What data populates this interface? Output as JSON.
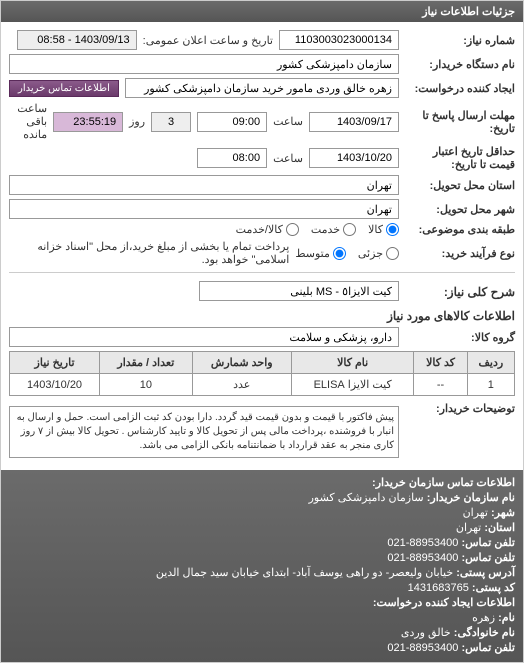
{
  "panel_title": "جزئیات اطلاعات نیاز",
  "form": {
    "need_number_label": "شماره نیاز:",
    "need_number": "1103003023000134",
    "public_notice_label": "تاریخ و ساعت اعلان عمومی:",
    "public_notice": "1403/09/13 - 08:58",
    "buyer_label": "نام دستگاه خریدار:",
    "buyer": "سازمان دامپزشکی کشور",
    "requester_label": "ایجاد کننده درخواست:",
    "requester": "زهره خالق وردی مامور خرید سازمان دامپزشکی کشور",
    "contact_btn": "اطلاعات تماس خریدار",
    "deadline_label": "مهلت ارسال پاسخ تا تاریخ:",
    "deadline_date": "1403/09/17",
    "saat1": "ساعت",
    "deadline_time": "09:00",
    "roz": "روز",
    "days": "3",
    "remain_time": "23:55:19",
    "remain_label": "ساعت باقی مانده",
    "validity_label": "حداقل تاریخ اعتبار قیمت تا تاریخ:",
    "validity_date": "1403/10/20",
    "validity_time": "08:00",
    "province_label": "استان محل تحویل:",
    "province": "تهران",
    "city_label": "شهر محل تحویل:",
    "city": "تهران",
    "topic_label": "طبقه بندی موضوعی:",
    "topic_kala": "کالا",
    "topic_khadamat": "خدمت",
    "topic_kalakhadamat": "کالا/خدمت",
    "process_label": "نوع فرآیند خرید:",
    "process_jozi": "جزئی",
    "process_motavaset": "متوسط",
    "process_note": "پرداخت تمام یا بخشی از مبلغ خرید،از محل \"اسناد خزانه اسلامی\" خواهد بود."
  },
  "key_label": "شرح کلی نیاز:",
  "key_value": "کیت الایزا٥ - MS بلینی",
  "items_title": "اطلاعات کالاهای مورد نیاز",
  "group_label": "گروه کالا:",
  "group_value": "دارو، پزشکی و سلامت",
  "table": {
    "headers": [
      "ردیف",
      "کد کالا",
      "نام کالا",
      "واحد شمارش",
      "تعداد / مقدار",
      "تاریخ نیاز"
    ],
    "rows": [
      [
        "1",
        "--",
        "کیت الایزا ELISA",
        "عدد",
        "10",
        "1403/10/20"
      ]
    ]
  },
  "buyer_note_label": "توضیحات خریدار:",
  "buyer_note": "پیش فاکتور با قیمت و بدون قیمت قید گردد. دارا بودن کد ثبت الزامی است. حمل و ارسال به انبار با فروشنده ،پرداخت مالی پس از تحویل کالا و تایید کارشناس . تحویل کالا بیش از ۷ روز کاری منجر به عقد قرارداد با ضمانتنامه بانکی الزامی می باشد.",
  "footer": {
    "contact_title": "اطلاعات تماس سازمان خریدار:",
    "org_label": "نام سازمان خریدار:",
    "org": "سازمان دامپزشکی کشور",
    "ostan_label": "استان:",
    "ostan": "تهران",
    "shahr_label": "شهر:",
    "shahr": "تهران",
    "tel_label": "تلفن تماس:",
    "tel": "88953400-021",
    "fax_label": "تلفن تماس:",
    "fax": "88953400-021",
    "addr_label": "آدرس پستی:",
    "addr": "خیابان ولیعصر- دو راهی یوسف آباد- ابتدای خیابان سید جمال الدین",
    "post_label": "کد پستی:",
    "post": "1431683765",
    "req_creator_title": "اطلاعات ایجاد کننده درخواست:",
    "name_label": "نام:",
    "name": "زهره",
    "family_label": "نام خانوادگی:",
    "family": "خالق وردی",
    "tel2_label": "تلفن تماس:",
    "tel2": "88953400-021"
  }
}
